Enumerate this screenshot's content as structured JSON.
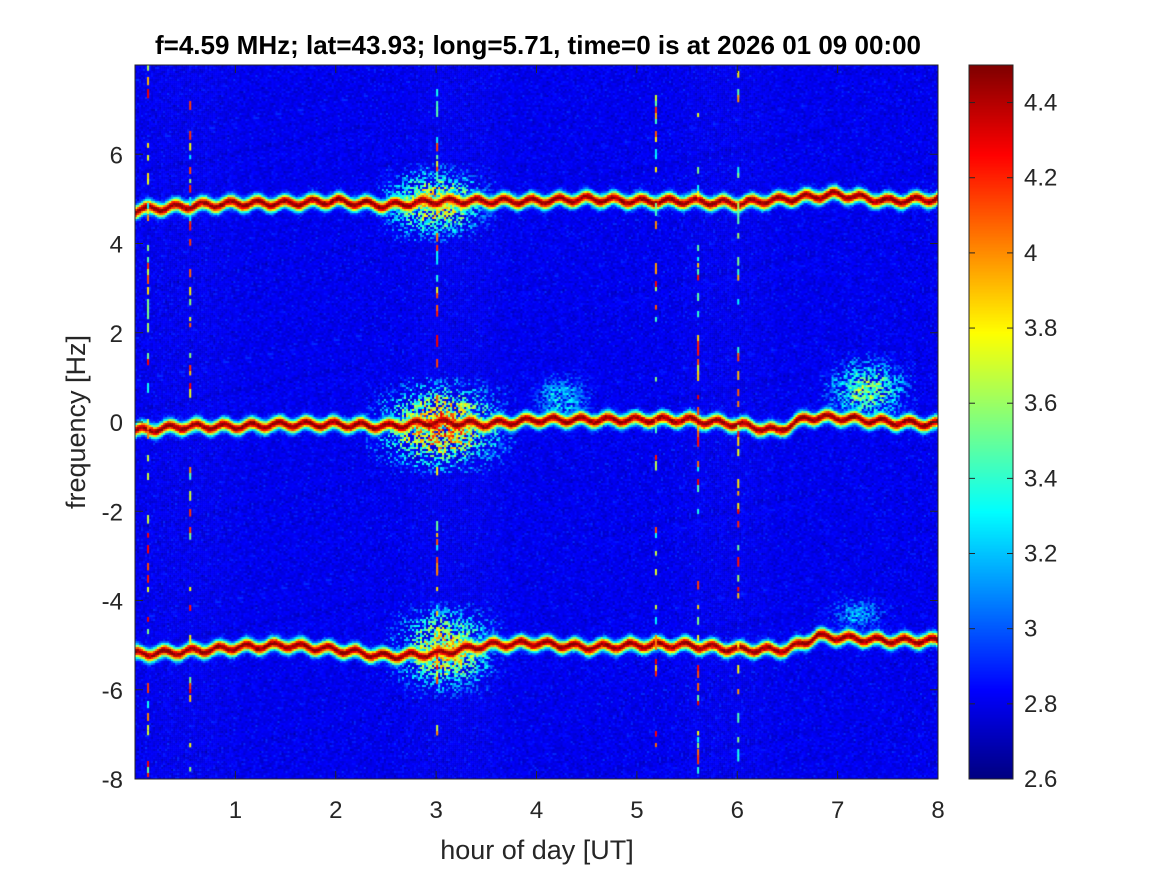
{
  "chart_data": {
    "type": "heatmap",
    "title": "f=4.59 MHz;  lat=43.93; long=5.71, time=0 is at 2026 01 09 00:00",
    "xlabel": "hour of day [UT]",
    "ylabel": "frequency [Hz]",
    "xlim": [
      0,
      8
    ],
    "ylim": [
      -8,
      8
    ],
    "x_ticks": [
      1,
      2,
      3,
      4,
      5,
      6,
      7,
      8
    ],
    "x_tick_labels": [
      "1",
      "2",
      "3",
      "4",
      "5",
      "6",
      "7",
      "8"
    ],
    "y_ticks": [
      -8,
      -6,
      -4,
      -2,
      0,
      2,
      4,
      6
    ],
    "y_tick_labels": [
      "-8",
      "-6",
      "-4",
      "-2",
      "0",
      "2",
      "4",
      "6"
    ],
    "colormap": "jet",
    "clim": [
      2.6,
      4.5
    ],
    "colorbar_ticks": [
      2.6,
      2.8,
      3,
      3.2,
      3.4,
      3.6,
      3.8,
      4,
      4.2,
      4.4
    ],
    "colorbar_tick_labels": [
      "2.6",
      "2.8",
      "3",
      "3.2",
      "3.4",
      "3.6",
      "3.8",
      "4",
      "4.2",
      "4.4"
    ],
    "background_level": 2.75,
    "traces": [
      {
        "name": "upper echo band",
        "center_hz": 4.9,
        "path": [
          [
            0,
            4.75
          ],
          [
            0.3,
            4.8
          ],
          [
            0.6,
            4.85
          ],
          [
            1.0,
            4.9
          ],
          [
            1.5,
            4.9
          ],
          [
            2.0,
            4.95
          ],
          [
            2.5,
            4.85
          ],
          [
            3.0,
            4.95
          ],
          [
            3.5,
            4.95
          ],
          [
            4.0,
            4.95
          ],
          [
            4.5,
            5.0
          ],
          [
            5.0,
            4.95
          ],
          [
            5.5,
            4.95
          ],
          [
            6.0,
            4.9
          ],
          [
            6.5,
            5.0
          ],
          [
            7.0,
            5.1
          ],
          [
            7.5,
            4.95
          ],
          [
            8.0,
            5.0
          ]
        ]
      },
      {
        "name": "central band",
        "center_hz": 0,
        "path": [
          [
            0,
            -0.2
          ],
          [
            0.5,
            -0.1
          ],
          [
            1.0,
            -0.1
          ],
          [
            1.5,
            -0.05
          ],
          [
            2.0,
            -0.05
          ],
          [
            2.5,
            -0.1
          ],
          [
            3.0,
            0.0
          ],
          [
            3.5,
            -0.05
          ],
          [
            4.0,
            0.05
          ],
          [
            4.5,
            0.05
          ],
          [
            5.0,
            0.05
          ],
          [
            5.5,
            0.05
          ],
          [
            6.0,
            -0.05
          ],
          [
            6.4,
            -0.2
          ],
          [
            6.7,
            0.1
          ],
          [
            7.0,
            0.1
          ],
          [
            7.5,
            0.0
          ],
          [
            8.0,
            -0.05
          ]
        ]
      },
      {
        "name": "lower echo band",
        "center_hz": -5.1,
        "path": [
          [
            0,
            -5.2
          ],
          [
            0.5,
            -5.15
          ],
          [
            1.0,
            -5.05
          ],
          [
            1.5,
            -5.0
          ],
          [
            2.0,
            -5.1
          ],
          [
            2.5,
            -5.25
          ],
          [
            3.0,
            -5.2
          ],
          [
            3.5,
            -5.0
          ],
          [
            4.0,
            -4.95
          ],
          [
            4.5,
            -5.05
          ],
          [
            5.0,
            -5.0
          ],
          [
            5.5,
            -5.0
          ],
          [
            6.0,
            -5.1
          ],
          [
            6.5,
            -5.1
          ],
          [
            6.8,
            -4.8
          ],
          [
            7.5,
            -4.9
          ],
          [
            8.0,
            -4.9
          ]
        ]
      }
    ],
    "activity_regions": [
      {
        "name": "spread around hour 3 (upper)",
        "hours": [
          2.4,
          3.6
        ],
        "freq": [
          4.0,
          5.8
        ],
        "level": 3.9
      },
      {
        "name": "spread around hour 3 (center)",
        "hours": [
          2.3,
          3.8
        ],
        "freq": [
          -1.2,
          1.0
        ],
        "level": 4.1
      },
      {
        "name": "spread around hour 3 (lower)",
        "hours": [
          2.5,
          3.7
        ],
        "freq": [
          -6.2,
          -4.0
        ],
        "level": 3.9
      },
      {
        "name": "activity near hour 4.3",
        "hours": [
          3.9,
          4.6
        ],
        "freq": [
          -0.2,
          1.2
        ],
        "level": 3.3
      },
      {
        "name": "activity near hour 7.2",
        "hours": [
          6.8,
          7.8
        ],
        "freq": [
          -0.2,
          1.6
        ],
        "level": 3.6
      },
      {
        "name": "activity near hour 7.2 (lower)",
        "hours": [
          6.8,
          7.6
        ],
        "freq": [
          -4.8,
          -3.8
        ],
        "level": 3.2
      }
    ]
  }
}
